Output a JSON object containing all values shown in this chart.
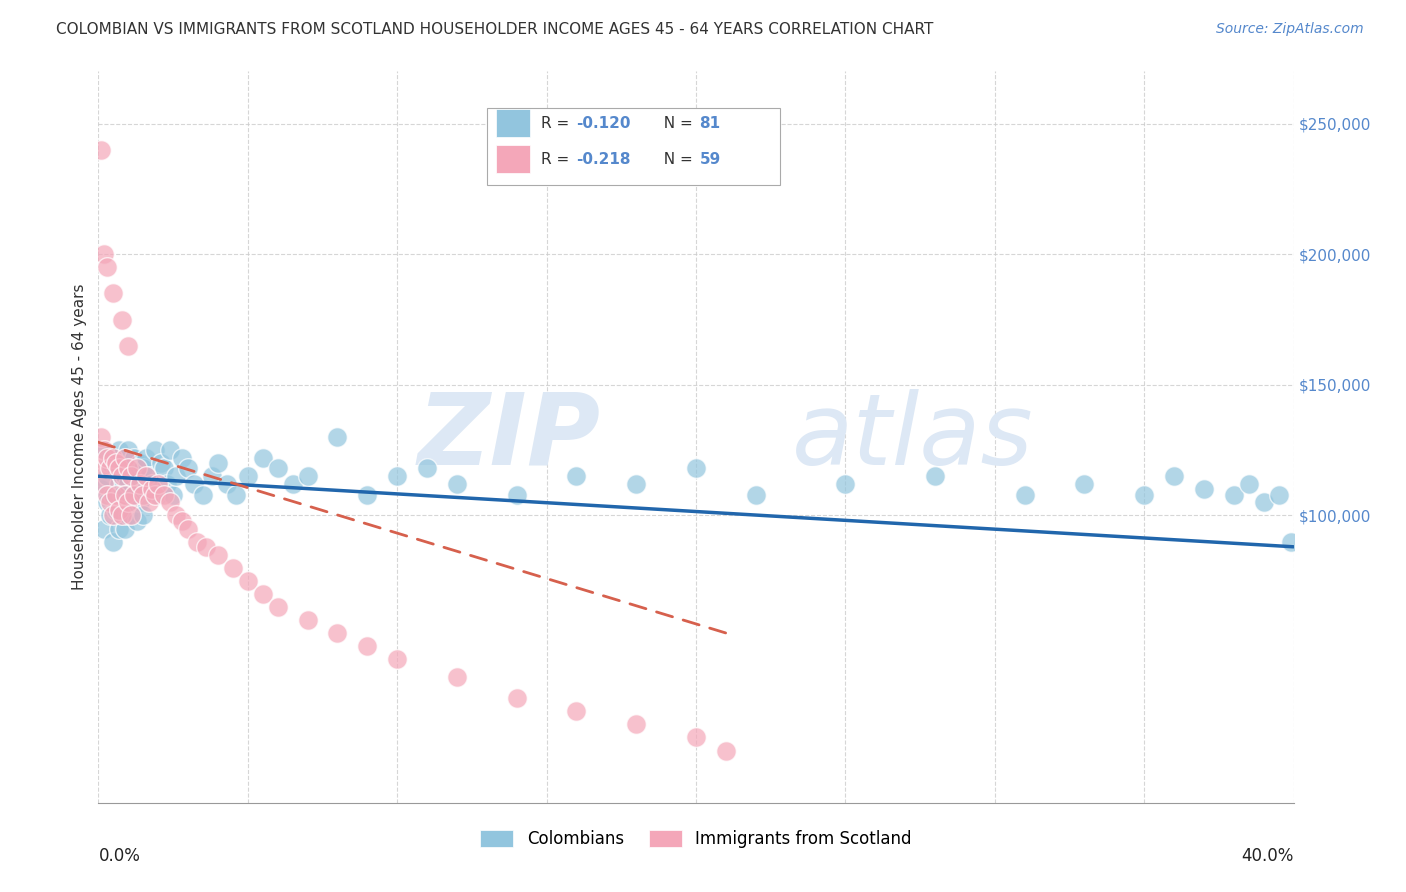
{
  "title": "COLOMBIAN VS IMMIGRANTS FROM SCOTLAND HOUSEHOLDER INCOME AGES 45 - 64 YEARS CORRELATION CHART",
  "source_text": "Source: ZipAtlas.com",
  "ylabel": "Householder Income Ages 45 - 64 years",
  "yaxis_labels": [
    "$250,000",
    "$200,000",
    "$150,000",
    "$100,000"
  ],
  "yaxis_values": [
    250000,
    200000,
    150000,
    100000
  ],
  "xlim": [
    0.0,
    0.4
  ],
  "ylim": [
    -10000,
    270000
  ],
  "legend_blue_r": "-0.120",
  "legend_blue_n": "81",
  "legend_pink_r": "-0.218",
  "legend_pink_n": "59",
  "blue_color": "#92c5de",
  "pink_color": "#f4a7b9",
  "blue_line_color": "#2166ac",
  "pink_line_color": "#d6604d",
  "watermark_zip": "ZIP",
  "watermark_atlas": "atlas",
  "legend_label_blue": "Colombians",
  "legend_label_pink": "Immigrants from Scotland",
  "blue_scatter_x": [
    0.001,
    0.002,
    0.002,
    0.003,
    0.003,
    0.004,
    0.004,
    0.005,
    0.005,
    0.005,
    0.006,
    0.006,
    0.007,
    0.007,
    0.007,
    0.008,
    0.008,
    0.008,
    0.009,
    0.009,
    0.009,
    0.01,
    0.01,
    0.01,
    0.011,
    0.011,
    0.012,
    0.012,
    0.013,
    0.013,
    0.014,
    0.014,
    0.015,
    0.015,
    0.016,
    0.016,
    0.017,
    0.018,
    0.019,
    0.02,
    0.021,
    0.022,
    0.023,
    0.024,
    0.025,
    0.026,
    0.028,
    0.03,
    0.032,
    0.035,
    0.038,
    0.04,
    0.043,
    0.046,
    0.05,
    0.055,
    0.06,
    0.065,
    0.07,
    0.08,
    0.09,
    0.1,
    0.11,
    0.12,
    0.14,
    0.16,
    0.18,
    0.2,
    0.22,
    0.25,
    0.28,
    0.31,
    0.33,
    0.35,
    0.36,
    0.37,
    0.38,
    0.385,
    0.39,
    0.395,
    0.399
  ],
  "blue_scatter_y": [
    110000,
    125000,
    95000,
    115000,
    105000,
    120000,
    100000,
    122000,
    108000,
    90000,
    118000,
    102000,
    125000,
    112000,
    95000,
    120000,
    108000,
    100000,
    122000,
    115000,
    95000,
    125000,
    112000,
    100000,
    118000,
    105000,
    122000,
    108000,
    115000,
    98000,
    120000,
    105000,
    118000,
    100000,
    122000,
    110000,
    115000,
    112000,
    125000,
    108000,
    120000,
    118000,
    112000,
    125000,
    108000,
    115000,
    122000,
    118000,
    112000,
    108000,
    115000,
    120000,
    112000,
    108000,
    115000,
    122000,
    118000,
    112000,
    115000,
    130000,
    108000,
    115000,
    118000,
    112000,
    108000,
    115000,
    112000,
    118000,
    108000,
    112000,
    115000,
    108000,
    112000,
    108000,
    115000,
    110000,
    108000,
    112000,
    105000,
    108000,
    90000
  ],
  "pink_scatter_x": [
    0.001,
    0.001,
    0.002,
    0.002,
    0.003,
    0.003,
    0.004,
    0.004,
    0.005,
    0.005,
    0.006,
    0.006,
    0.007,
    0.007,
    0.008,
    0.008,
    0.009,
    0.009,
    0.01,
    0.01,
    0.011,
    0.011,
    0.012,
    0.013,
    0.014,
    0.015,
    0.016,
    0.017,
    0.018,
    0.019,
    0.02,
    0.022,
    0.024,
    0.026,
    0.028,
    0.03,
    0.033,
    0.036,
    0.04,
    0.045,
    0.05,
    0.055,
    0.06,
    0.07,
    0.08,
    0.09,
    0.1,
    0.12,
    0.14,
    0.16,
    0.18,
    0.2,
    0.21,
    0.001,
    0.002,
    0.003,
    0.005,
    0.008,
    0.01
  ],
  "pink_scatter_y": [
    130000,
    118000,
    125000,
    112000,
    122000,
    108000,
    118000,
    105000,
    122000,
    100000,
    120000,
    108000,
    118000,
    102000,
    115000,
    100000,
    122000,
    108000,
    118000,
    105000,
    115000,
    100000,
    108000,
    118000,
    112000,
    108000,
    115000,
    105000,
    110000,
    108000,
    112000,
    108000,
    105000,
    100000,
    98000,
    95000,
    90000,
    88000,
    85000,
    80000,
    75000,
    70000,
    65000,
    60000,
    55000,
    50000,
    45000,
    38000,
    30000,
    25000,
    20000,
    15000,
    10000,
    240000,
    200000,
    195000,
    185000,
    175000,
    165000
  ],
  "blue_trendline_x": [
    0.0,
    0.4
  ],
  "blue_trendline_y": [
    115000,
    88000
  ],
  "pink_trendline_x": [
    0.0,
    0.21
  ],
  "pink_trendline_y": [
    128000,
    55000
  ],
  "background_color": "#ffffff",
  "grid_color": "#cccccc",
  "title_color": "#333333",
  "axis_label_color": "#5588cc",
  "watermark_color": "#dde8f5"
}
